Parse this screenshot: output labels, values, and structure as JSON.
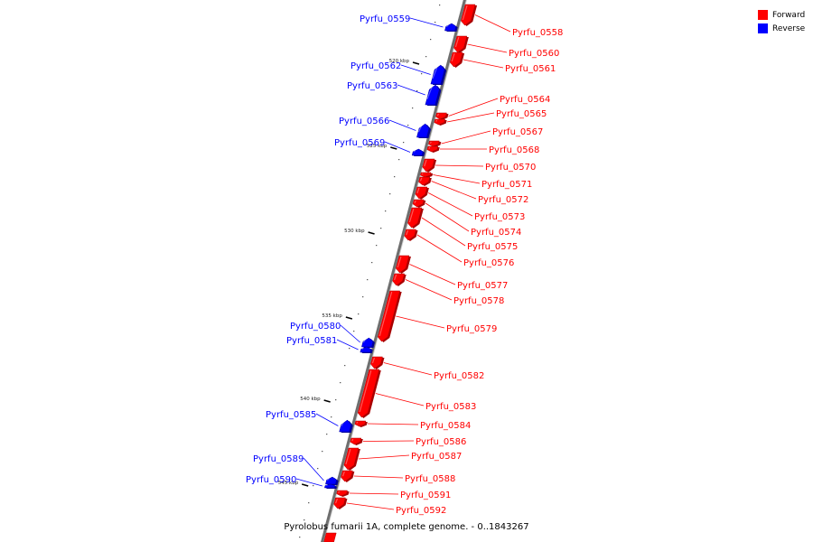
{
  "title": "Pyrolobus fumarii 1A, complete genome. - 0..1843267",
  "colors": {
    "forward": "#ff0000",
    "reverse": "#0000ff"
  },
  "legend": [
    {
      "label": "Forward",
      "strand": "forward"
    },
    {
      "label": "Reverse",
      "strand": "reverse"
    }
  ],
  "ticks": [
    {
      "label": "520 kbp",
      "kbp": 520
    },
    {
      "label": "525 kbp",
      "kbp": 525
    },
    {
      "label": "530 kbp",
      "kbp": 530
    },
    {
      "label": "535 kbp",
      "kbp": 535
    },
    {
      "label": "540 kbp",
      "kbp": 540
    },
    {
      "label": "545 kbp",
      "kbp": 545
    }
  ],
  "genes": [
    {
      "name": "Pyrfu_0558",
      "strand": "forward"
    },
    {
      "name": "Pyrfu_0559",
      "strand": "reverse"
    },
    {
      "name": "Pyrfu_0560",
      "strand": "forward"
    },
    {
      "name": "Pyrfu_0561",
      "strand": "forward"
    },
    {
      "name": "Pyrfu_0562",
      "strand": "reverse"
    },
    {
      "name": "Pyrfu_0563",
      "strand": "reverse"
    },
    {
      "name": "Pyrfu_0564",
      "strand": "forward"
    },
    {
      "name": "Pyrfu_0565",
      "strand": "forward"
    },
    {
      "name": "Pyrfu_0566",
      "strand": "reverse"
    },
    {
      "name": "Pyrfu_0567",
      "strand": "forward"
    },
    {
      "name": "Pyrfu_0568",
      "strand": "forward"
    },
    {
      "name": "Pyrfu_0569",
      "strand": "reverse"
    },
    {
      "name": "Pyrfu_0570",
      "strand": "forward"
    },
    {
      "name": "Pyrfu_0571",
      "strand": "forward"
    },
    {
      "name": "Pyrfu_0572",
      "strand": "forward"
    },
    {
      "name": "Pyrfu_0573",
      "strand": "forward"
    },
    {
      "name": "Pyrfu_0574",
      "strand": "forward"
    },
    {
      "name": "Pyrfu_0575",
      "strand": "forward"
    },
    {
      "name": "Pyrfu_0576",
      "strand": "forward"
    },
    {
      "name": "Pyrfu_0577",
      "strand": "forward"
    },
    {
      "name": "Pyrfu_0578",
      "strand": "forward"
    },
    {
      "name": "Pyrfu_0579",
      "strand": "forward"
    },
    {
      "name": "Pyrfu_0580",
      "strand": "reverse"
    },
    {
      "name": "Pyrfu_0581",
      "strand": "reverse"
    },
    {
      "name": "Pyrfu_0582",
      "strand": "forward"
    },
    {
      "name": "Pyrfu_0583",
      "strand": "forward"
    },
    {
      "name": "Pyrfu_0584",
      "strand": "forward"
    },
    {
      "name": "Pyrfu_0585",
      "strand": "reverse"
    },
    {
      "name": "Pyrfu_0586",
      "strand": "forward"
    },
    {
      "name": "Pyrfu_0587",
      "strand": "forward"
    },
    {
      "name": "Pyrfu_0588",
      "strand": "forward"
    },
    {
      "name": "Pyrfu_0589",
      "strand": "reverse"
    },
    {
      "name": "Pyrfu_0590",
      "strand": "reverse"
    },
    {
      "name": "Pyrfu_0591",
      "strand": "forward"
    },
    {
      "name": "Pyrfu_0592",
      "strand": "forward"
    }
  ]
}
